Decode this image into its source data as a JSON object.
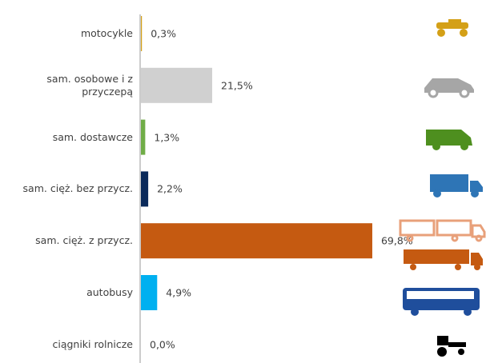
{
  "chart_data": {
    "type": "bar",
    "orientation": "horizontal",
    "categories": [
      "motocykle",
      "sam. osobowe i z przyczepą",
      "sam. dostawcze",
      "sam. cięż. bez przycz.",
      "sam. cięż. z przycz.",
      "autobusy",
      "ciągniki rolnicze"
    ],
    "values": [
      0.3,
      21.5,
      1.3,
      2.2,
      69.8,
      4.9,
      0.0
    ],
    "value_labels": [
      "0,3%",
      "21,5%",
      "1,3%",
      "2,2%",
      "69,8%",
      "4,9%",
      "0,0%"
    ],
    "colors": [
      "#d4a017",
      "#d0d0d0",
      "#70ad47",
      "#0b2a5b",
      "#c55a11",
      "#00b0f0",
      "#000000"
    ]
  }
}
